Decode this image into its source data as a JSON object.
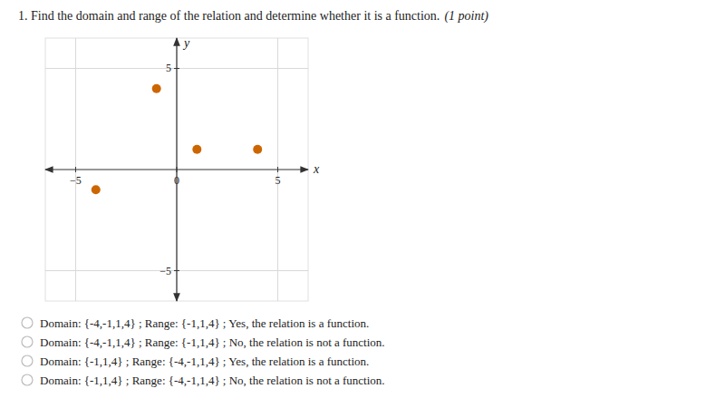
{
  "chart_data": {
    "type": "scatter",
    "title": "1. Find the domain and range of the relation and determine whether it is a function.",
    "subtitle": "(1 point)",
    "x_label": "x",
    "y_label": "y",
    "x": [
      -1,
      1,
      4,
      -4
    ],
    "values": [
      4,
      1,
      1,
      -1
    ],
    "color": "#CC6600",
    "xlim": [
      -6.5,
      6.5
    ],
    "ylim": [
      -6.5,
      6.5
    ],
    "xticks": [
      {
        "value": -5,
        "label": "−5"
      },
      0,
      5
    ],
    "yticks": [
      {
        "value": -5,
        "label": "−5"
      },
      5
    ],
    "grid": true,
    "annotations": [
      "Domain: {-4,-1,1,4} ; Range: {-1,1,4} ; Yes, the relation is a function.",
      "Domain: {-4,-1,1,4} ; Range: {-1,1,4} ; No, the relation is not a function.",
      "Domain: {-1,1,4} ; Range: {-4,-1,1,4} ; Yes, the relation is a function.",
      "Domain: {-1,1,4} ; Range: {-4,-1,1,4} ; No, the relation is not a function."
    ]
  }
}
